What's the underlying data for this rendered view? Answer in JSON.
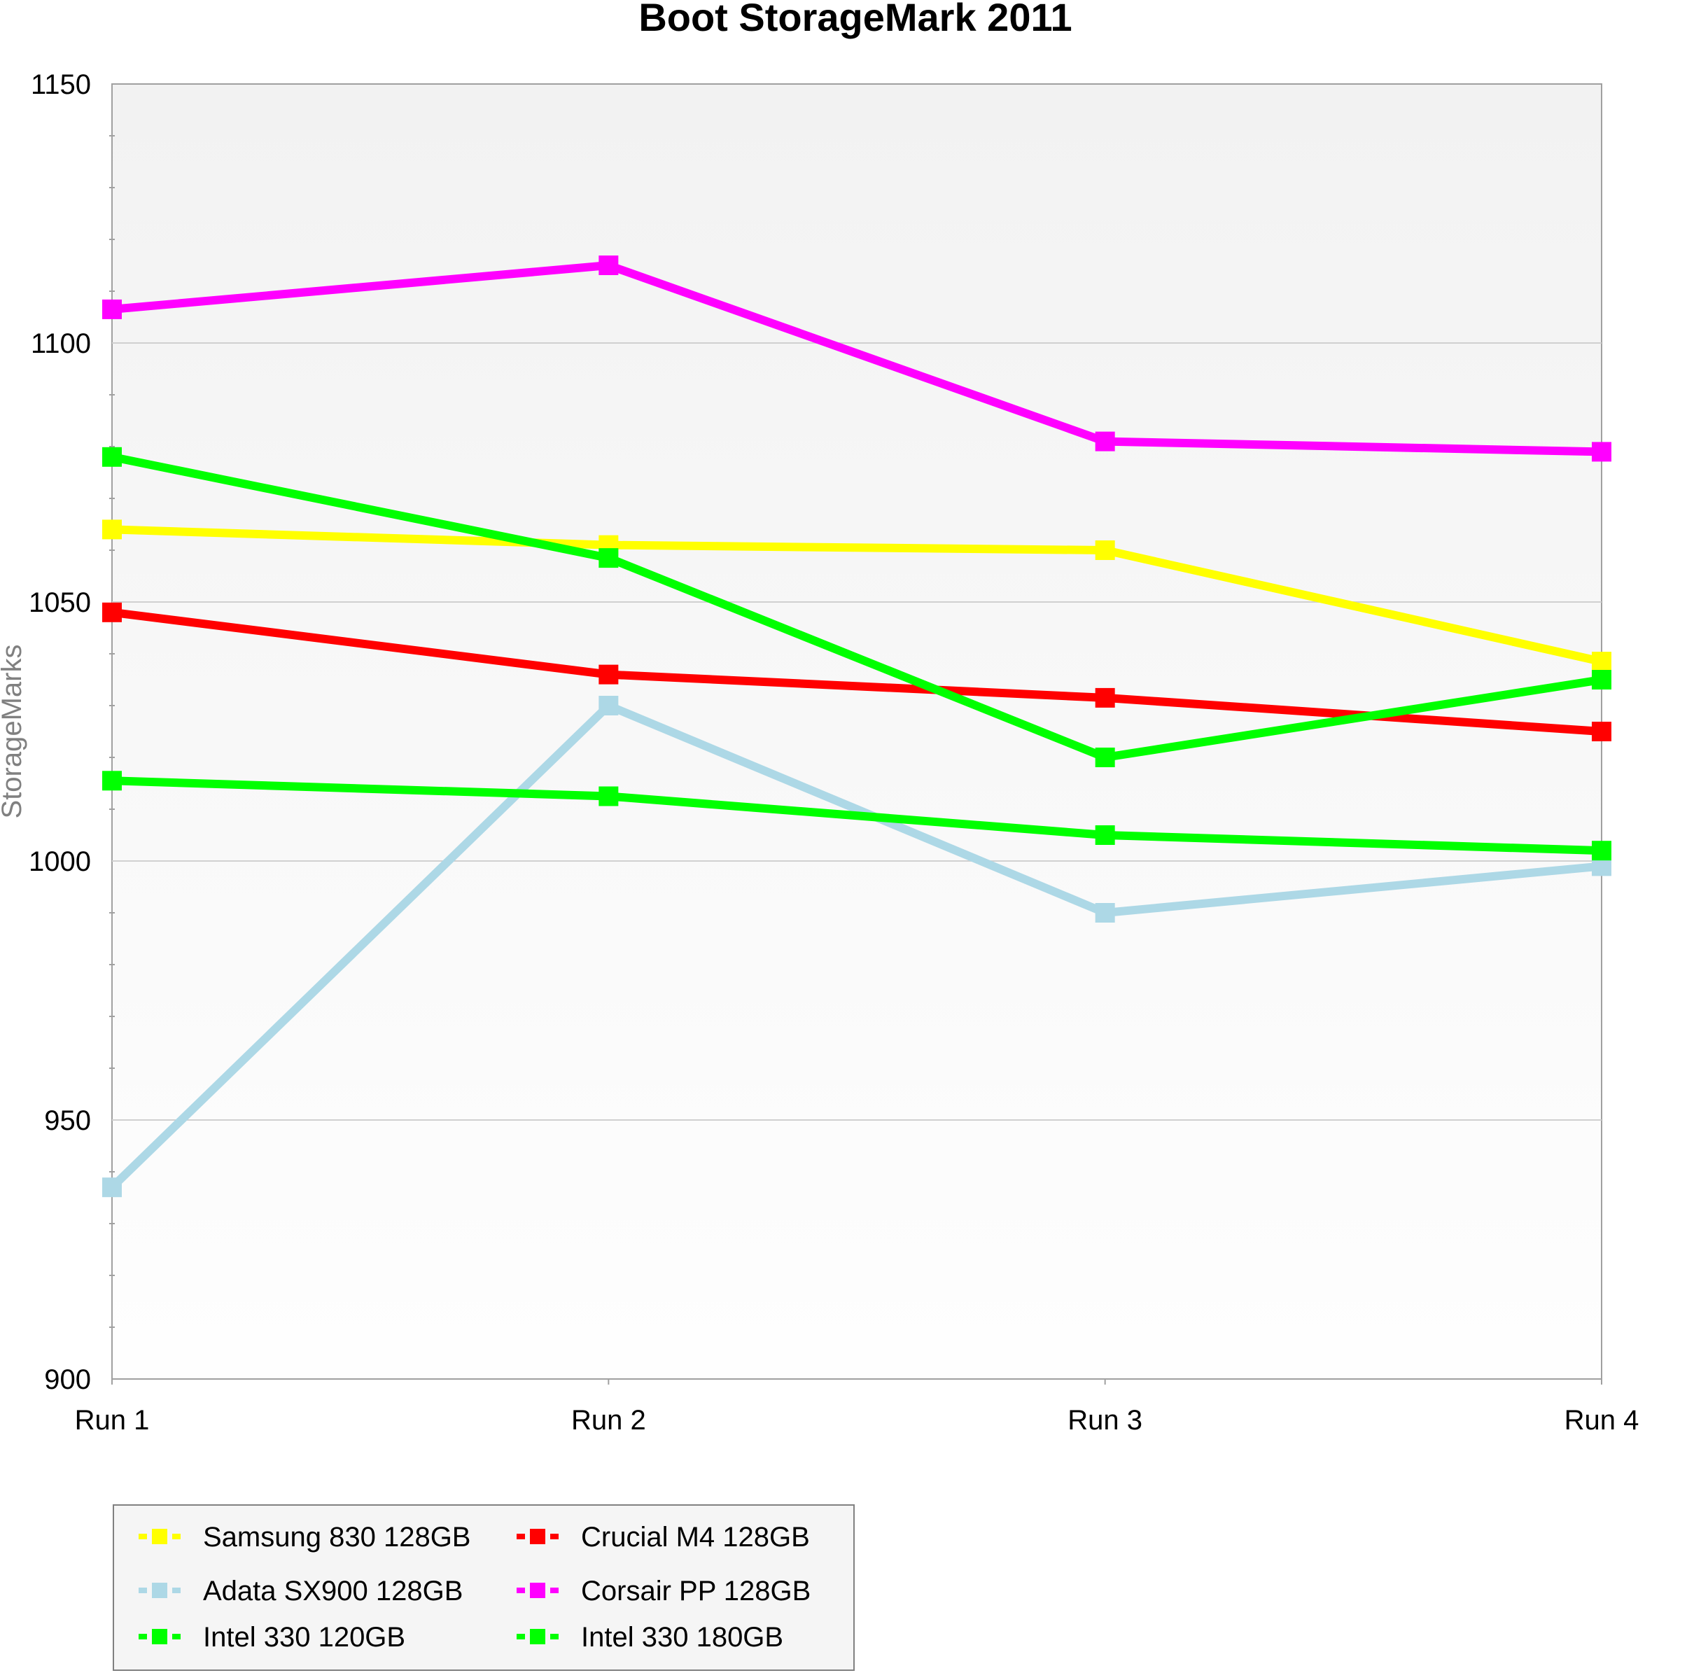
{
  "chart_data": {
    "type": "line",
    "title": "Boot StorageMark 2011",
    "xlabel": "",
    "ylabel": "StorageMarks",
    "categories": [
      "Run 1",
      "Run 2",
      "Run 3",
      "Run 4"
    ],
    "ylim": [
      900,
      1150
    ],
    "yticks": [
      900,
      950,
      1000,
      1050,
      1100,
      1150
    ],
    "grid": true,
    "legend_position": "bottom-left",
    "series": [
      {
        "name": "Samsung 830 128GB",
        "color": "#ffff00",
        "values": [
          1064,
          1061,
          1060,
          1038.5
        ]
      },
      {
        "name": "Crucial M4 128GB",
        "color": "#ff0000",
        "values": [
          1048,
          1036,
          1031.5,
          1025
        ]
      },
      {
        "name": "Adata SX900 128GB",
        "color": "#add8e6",
        "values": [
          937,
          1030,
          990,
          999
        ]
      },
      {
        "name": "Corsair PP 128GB",
        "color": "#ff00ff",
        "values": [
          1106.5,
          1115,
          1081,
          1079
        ]
      },
      {
        "name": "Intel 330 120GB",
        "color": "#00ff00",
        "values": [
          1015.5,
          1012.5,
          1005,
          1002
        ]
      },
      {
        "name": "Intel 330 180GB",
        "color": "#00ff00",
        "values": [
          1078,
          1058.5,
          1020,
          1035
        ]
      }
    ],
    "line_order": [
      2,
      0,
      1,
      4,
      5,
      3
    ]
  }
}
